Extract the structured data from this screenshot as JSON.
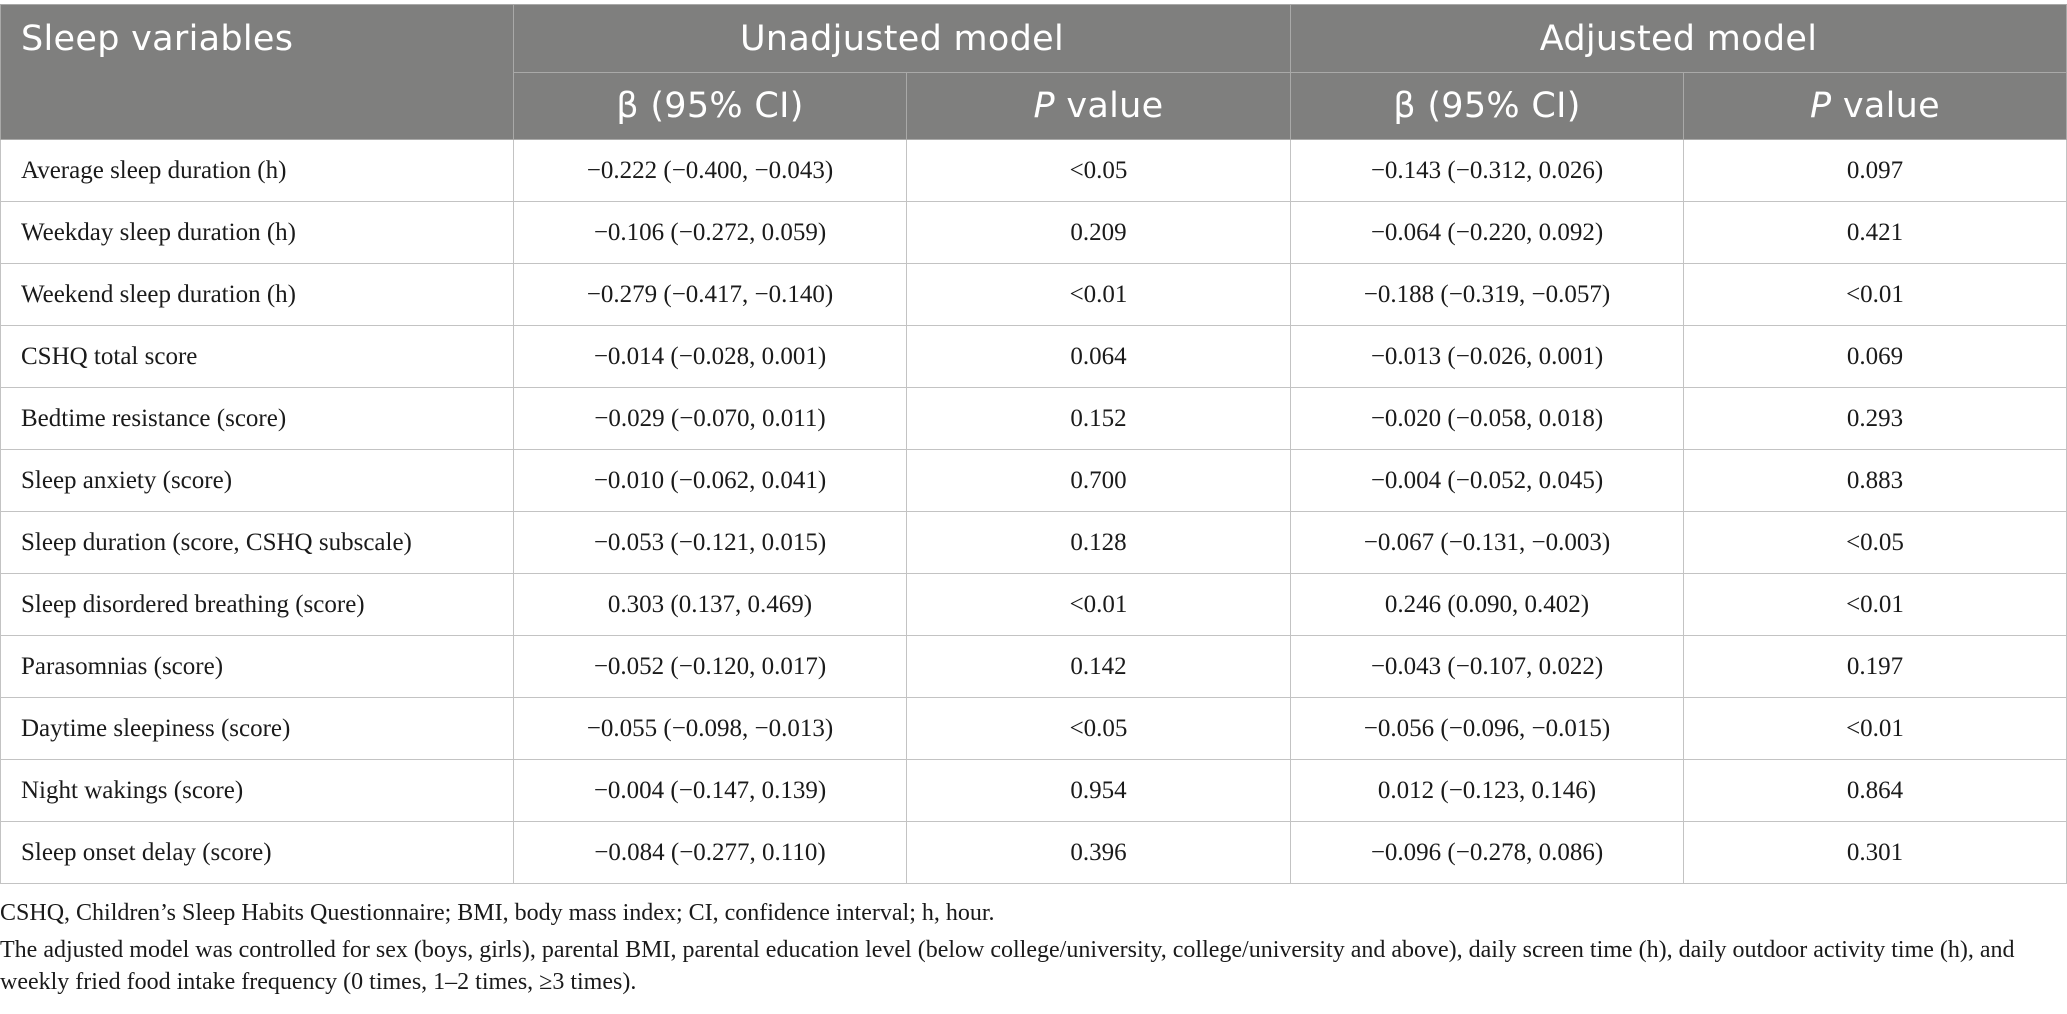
{
  "header": {
    "col_var": "Sleep variables",
    "group_unadjusted": "Unadjusted model",
    "group_adjusted": "Adjusted model",
    "beta_label": "β (95% CI)",
    "p_italic": "P",
    "p_rest": " value"
  },
  "rows": [
    {
      "variable": "Average sleep duration (h)",
      "u_beta": "−0.222 (−0.400, −0.043)",
      "u_p": "<0.05",
      "a_beta": "−0.143 (−0.312, 0.026)",
      "a_p": "0.097"
    },
    {
      "variable": "Weekday sleep duration (h)",
      "u_beta": "−0.106 (−0.272, 0.059)",
      "u_p": "0.209",
      "a_beta": "−0.064 (−0.220, 0.092)",
      "a_p": "0.421"
    },
    {
      "variable": "Weekend sleep duration (h)",
      "u_beta": "−0.279 (−0.417, −0.140)",
      "u_p": "<0.01",
      "a_beta": "−0.188 (−0.319, −0.057)",
      "a_p": "<0.01"
    },
    {
      "variable": "CSHQ total score",
      "u_beta": "−0.014 (−0.028, 0.001)",
      "u_p": "0.064",
      "a_beta": "−0.013 (−0.026, 0.001)",
      "a_p": "0.069"
    },
    {
      "variable": "Bedtime resistance (score)",
      "u_beta": "−0.029 (−0.070, 0.011)",
      "u_p": "0.152",
      "a_beta": "−0.020 (−0.058, 0.018)",
      "a_p": "0.293"
    },
    {
      "variable": "Sleep anxiety (score)",
      "u_beta": "−0.010 (−0.062, 0.041)",
      "u_p": "0.700",
      "a_beta": "−0.004 (−0.052, 0.045)",
      "a_p": "0.883"
    },
    {
      "variable": "Sleep duration (score, CSHQ subscale)",
      "u_beta": "−0.053 (−0.121, 0.015)",
      "u_p": "0.128",
      "a_beta": "−0.067 (−0.131, −0.003)",
      "a_p": "<0.05"
    },
    {
      "variable": "Sleep disordered breathing (score)",
      "u_beta": "0.303 (0.137, 0.469)",
      "u_p": "<0.01",
      "a_beta": "0.246 (0.090, 0.402)",
      "a_p": "<0.01"
    },
    {
      "variable": "Parasomnias (score)",
      "u_beta": "−0.052 (−0.120, 0.017)",
      "u_p": "0.142",
      "a_beta": "−0.043 (−0.107, 0.022)",
      "a_p": "0.197"
    },
    {
      "variable": "Daytime sleepiness (score)",
      "u_beta": "−0.055 (−0.098, −0.013)",
      "u_p": "<0.05",
      "a_beta": "−0.056 (−0.096, −0.015)",
      "a_p": "<0.01"
    },
    {
      "variable": "Night wakings (score)",
      "u_beta": "−0.004 (−0.147, 0.139)",
      "u_p": "0.954",
      "a_beta": "0.012 (−0.123, 0.146)",
      "a_p": "0.864"
    },
    {
      "variable": "Sleep onset delay (score)",
      "u_beta": "−0.084 (−0.277, 0.110)",
      "u_p": "0.396",
      "a_beta": "−0.096 (−0.278, 0.086)",
      "a_p": "0.301"
    }
  ],
  "notes": {
    "abbreviations": "CSHQ, Children’s Sleep Habits Questionnaire; BMI, body mass index; CI, confidence interval; h, hour.",
    "adjustment": "The adjusted model was controlled for sex (boys, girls), parental BMI, parental education level (below college/university, college/university and above), daily screen time (h), daily outdoor activity time (h), and weekly fried food intake frequency (0 times, 1–2 times, ≥3 times)."
  },
  "colors": {
    "header_bg": "#7f7f7e",
    "header_text": "#ffffff",
    "grid_line": "#c3c3c3"
  }
}
